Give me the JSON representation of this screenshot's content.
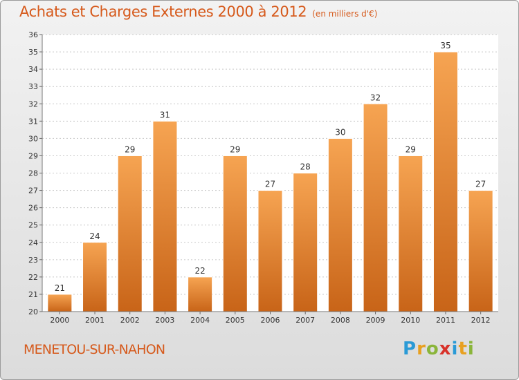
{
  "header": {
    "title": "Achats et Charges Externes 2000 à 2012",
    "unit": "(en milliers d'€)"
  },
  "footer": {
    "commune": "MENETOU-SUR-NAHON",
    "logo_letters": [
      "P",
      "r",
      "o",
      "x",
      "i",
      "t",
      "i"
    ]
  },
  "colors": {
    "title": "#d65a1c",
    "bar_top": "#f6a452",
    "bar_bottom": "#c86418",
    "grid": "#c8c8c8"
  },
  "chart_data": {
    "type": "bar",
    "categories": [
      "2000",
      "2001",
      "2002",
      "2003",
      "2004",
      "2005",
      "2006",
      "2007",
      "2008",
      "2009",
      "2010",
      "2011",
      "2012"
    ],
    "values": [
      21,
      24,
      29,
      31,
      22,
      29,
      27,
      28,
      30,
      32,
      29,
      35,
      27
    ],
    "ylim": [
      20,
      36
    ],
    "yticks": [
      20,
      21,
      22,
      23,
      24,
      25,
      26,
      27,
      28,
      29,
      30,
      31,
      32,
      33,
      34,
      35,
      36
    ],
    "grid": true,
    "data_labels": true
  }
}
